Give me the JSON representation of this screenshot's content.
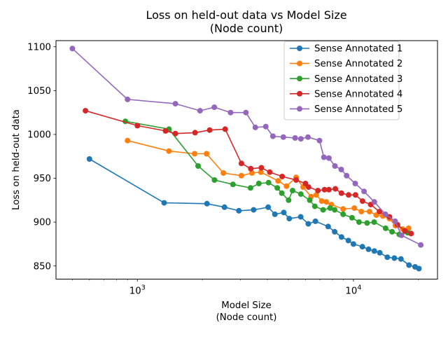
{
  "figure": {
    "title_line1": "Loss on held-out data vs Model Size",
    "title_line2": "(Node count)",
    "xlabel_line1": "Model Size",
    "xlabel_line2": "(Node count)",
    "ylabel": "Loss on held-out data",
    "background_color": "#ffffff",
    "spine_color": "#000000",
    "legend_border_color": "#cccccc"
  },
  "chart_data": {
    "type": "line",
    "x_scale": "log",
    "y_scale": "linear",
    "grid": false,
    "legend_position": "upper right",
    "xlim": [
      420,
      24500
    ],
    "ylim": [
      835,
      1107
    ],
    "y_ticks": [
      850,
      900,
      950,
      1000,
      1050,
      1100
    ],
    "x_major_ticks": [
      {
        "value": 1000,
        "base": "10",
        "exponent": "3"
      },
      {
        "value": 10000,
        "base": "10",
        "exponent": "4"
      }
    ],
    "x_minor_ticks": [
      500,
      600,
      700,
      800,
      900,
      2000,
      3000,
      4000,
      5000,
      6000,
      7000,
      8000,
      9000,
      20000
    ],
    "series": [
      {
        "name": "Sense Annotated 1",
        "color": "#1f77b4",
        "points": [
          [
            600,
            972
          ],
          [
            1330,
            922
          ],
          [
            2100,
            921
          ],
          [
            2530,
            917
          ],
          [
            2950,
            913
          ],
          [
            3450,
            914
          ],
          [
            4030,
            917
          ],
          [
            4330,
            909
          ],
          [
            4760,
            911
          ],
          [
            5050,
            904
          ],
          [
            5700,
            906
          ],
          [
            6180,
            898
          ],
          [
            6670,
            901
          ],
          [
            7640,
            895
          ],
          [
            8190,
            889
          ],
          [
            8810,
            883
          ],
          [
            9480,
            879
          ],
          [
            10000,
            875
          ],
          [
            11000,
            872
          ],
          [
            11750,
            869
          ],
          [
            12500,
            867
          ],
          [
            13250,
            865
          ],
          [
            14350,
            860
          ],
          [
            15470,
            859
          ],
          [
            16600,
            858
          ],
          [
            18090,
            851
          ],
          [
            19300,
            849
          ],
          [
            20100,
            847
          ]
        ]
      },
      {
        "name": "Sense Annotated 2",
        "color": "#ff7f0e",
        "points": [
          [
            900,
            993
          ],
          [
            1400,
            981
          ],
          [
            1840,
            978
          ],
          [
            2090,
            978
          ],
          [
            2500,
            956
          ],
          [
            3030,
            953
          ],
          [
            3390,
            956
          ],
          [
            3730,
            957
          ],
          [
            4480,
            947
          ],
          [
            4900,
            941
          ],
          [
            5430,
            951
          ],
          [
            5850,
            940
          ],
          [
            6370,
            929
          ],
          [
            6730,
            931
          ],
          [
            7140,
            924
          ],
          [
            7500,
            923
          ],
          [
            7900,
            920
          ],
          [
            8960,
            915
          ],
          [
            10100,
            916
          ],
          [
            10880,
            912
          ],
          [
            11870,
            912
          ],
          [
            12750,
            908
          ],
          [
            13670,
            907
          ],
          [
            14680,
            904
          ],
          [
            15630,
            896
          ],
          [
            16900,
            892
          ],
          [
            18000,
            893
          ]
        ]
      },
      {
        "name": "Sense Annotated 3",
        "color": "#2ca02c",
        "points": [
          [
            880,
            1015
          ],
          [
            1400,
            1006
          ],
          [
            1910,
            964
          ],
          [
            2275,
            948
          ],
          [
            2770,
            943
          ],
          [
            3340,
            939
          ],
          [
            3650,
            944
          ],
          [
            4050,
            945
          ],
          [
            4440,
            939
          ],
          [
            4660,
            933
          ],
          [
            5010,
            925
          ],
          [
            5230,
            936
          ],
          [
            5710,
            932
          ],
          [
            6280,
            925
          ],
          [
            6630,
            918
          ],
          [
            7240,
            914
          ],
          [
            7800,
            916
          ],
          [
            8190,
            914
          ],
          [
            8960,
            909
          ],
          [
            9850,
            905
          ],
          [
            10620,
            900
          ],
          [
            11570,
            899
          ],
          [
            12470,
            900
          ],
          [
            14100,
            893
          ],
          [
            15100,
            889
          ],
          [
            16300,
            886
          ],
          [
            17800,
            888
          ]
        ]
      },
      {
        "name": "Sense Annotated 4",
        "color": "#d62728",
        "points": [
          [
            575,
            1027
          ],
          [
            1000,
            1010
          ],
          [
            1350,
            1004
          ],
          [
            1500,
            1001
          ],
          [
            1850,
            1002
          ],
          [
            2160,
            1005
          ],
          [
            2550,
            1006
          ],
          [
            3030,
            967
          ],
          [
            3350,
            961
          ],
          [
            3750,
            962
          ],
          [
            4100,
            957
          ],
          [
            4680,
            952
          ],
          [
            5430,
            948
          ],
          [
            6000,
            944
          ],
          [
            6200,
            940
          ],
          [
            6850,
            936
          ],
          [
            7350,
            937
          ],
          [
            7700,
            937
          ],
          [
            8250,
            938
          ],
          [
            8800,
            933
          ],
          [
            9500,
            931
          ],
          [
            10230,
            931
          ],
          [
            11020,
            924
          ],
          [
            12020,
            920
          ],
          [
            13200,
            912
          ],
          [
            14700,
            906
          ],
          [
            16000,
            897
          ],
          [
            17300,
            890
          ],
          [
            18500,
            887
          ]
        ]
      },
      {
        "name": "Sense Annotated 5",
        "color": "#9467bd",
        "points": [
          [
            500,
            1098
          ],
          [
            900,
            1040
          ],
          [
            1500,
            1035
          ],
          [
            1950,
            1027
          ],
          [
            2270,
            1031
          ],
          [
            2700,
            1025
          ],
          [
            3180,
            1025
          ],
          [
            3515,
            1008
          ],
          [
            3930,
            1009
          ],
          [
            4240,
            998
          ],
          [
            4740,
            997
          ],
          [
            5370,
            996
          ],
          [
            5710,
            995
          ],
          [
            6160,
            997
          ],
          [
            6970,
            993
          ],
          [
            7300,
            974
          ],
          [
            7700,
            973
          ],
          [
            8210,
            964
          ],
          [
            8780,
            960
          ],
          [
            9300,
            953
          ],
          [
            10200,
            944
          ],
          [
            11200,
            935
          ],
          [
            12500,
            923
          ],
          [
            14060,
            909
          ],
          [
            15600,
            901
          ],
          [
            16700,
            885
          ],
          [
            20500,
            874
          ]
        ]
      }
    ]
  }
}
